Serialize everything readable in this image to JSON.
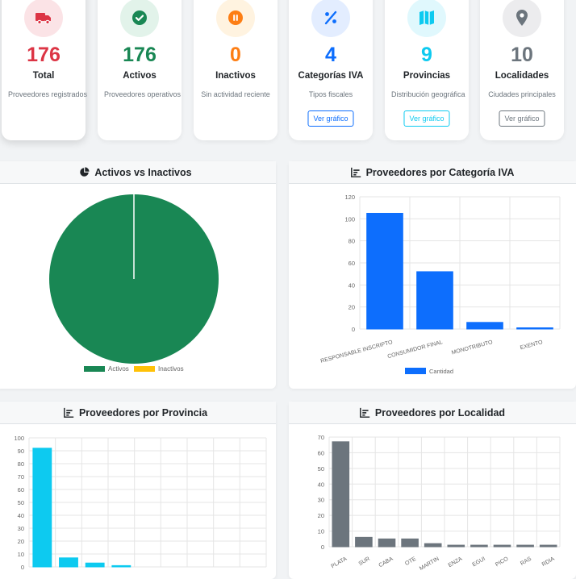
{
  "colors": {
    "red": "#dc3545",
    "green": "#198754",
    "orange": "#fd7e14",
    "blue": "#0d6efd",
    "cyan": "#0dcaf0",
    "gray": "#6c757d",
    "pie_active": "#198754",
    "pie_inactive": "#ffc107"
  },
  "cards": [
    {
      "icon": "truck-icon",
      "value": "176",
      "title": "Total",
      "desc": "Proveedores registrados",
      "color": "#dc3545",
      "bg": "#fbe3e6"
    },
    {
      "icon": "check-circle-icon",
      "value": "176",
      "title": "Activos",
      "desc": "Proveedores operativos",
      "color": "#198754",
      "bg": "#e2f3ea"
    },
    {
      "icon": "pause-circle-icon",
      "value": "0",
      "title": "Inactivos",
      "desc": "Sin actividad reciente",
      "color": "#fd7e14",
      "bg": "#fff3e0"
    },
    {
      "icon": "percent-icon",
      "value": "4",
      "title": "Categorías IVA",
      "desc": "Tipos fiscales",
      "color": "#0d6efd",
      "bg": "#e3edff",
      "button": "Ver gráfico"
    },
    {
      "icon": "map-icon",
      "value": "9",
      "title": "Provincias",
      "desc": "Distribución geográfica",
      "color": "#0dcaf0",
      "bg": "#e0f8fd",
      "button": "Ver gráfico"
    },
    {
      "icon": "map-pin-icon",
      "value": "10",
      "title": "Localidades",
      "desc": "Ciudades principales",
      "color": "#6c757d",
      "bg": "#ececee",
      "button": "Ver gráfico"
    }
  ],
  "panels": {
    "pie_title": "Activos vs Inactivos",
    "iva_title": "Proveedores por Categoría IVA",
    "prov_title": "Proveedores por Provincia",
    "loc_title": "Proveedores por Localidad"
  },
  "chart_data": [
    {
      "type": "pie",
      "title": "Activos vs Inactivos",
      "categories": [
        "Activos",
        "Inactivos"
      ],
      "values": [
        176,
        0
      ],
      "legend": [
        "Activos",
        "Inactivos"
      ]
    },
    {
      "type": "bar",
      "title": "Proveedores por Categoría IVA",
      "categories": [
        "RESPONSABLE INSCRIPTO",
        "CONSUMIDOR FINAL",
        "MONOTRIBUTO",
        "EXENTO"
      ],
      "values": [
        105,
        52,
        6,
        1
      ],
      "ylim": [
        0,
        120
      ],
      "yticks": [
        0,
        20,
        40,
        60,
        80,
        100,
        120
      ],
      "legend": [
        "Cantidad"
      ]
    },
    {
      "type": "bar",
      "title": "Proveedores por Provincia",
      "values": [
        92,
        7,
        3,
        1,
        0,
        0,
        0,
        0,
        0
      ],
      "ylim": [
        0,
        100
      ],
      "yticks": [
        0,
        10,
        20,
        30,
        40,
        50,
        60,
        70,
        80,
        90,
        100
      ]
    },
    {
      "type": "bar",
      "title": "Proveedores por Localidad",
      "categories": [
        "PLATA",
        "SUR",
        "CABA",
        "OTE",
        "MARTIN",
        "ENZA",
        "EGUI",
        "PICO",
        "RAS",
        "RDIA"
      ],
      "values": [
        67,
        6,
        5,
        5,
        2,
        1,
        1,
        1,
        1,
        1
      ],
      "ylim": [
        0,
        70
      ],
      "yticks": [
        0,
        10,
        20,
        30,
        40,
        50,
        60,
        70
      ]
    }
  ]
}
